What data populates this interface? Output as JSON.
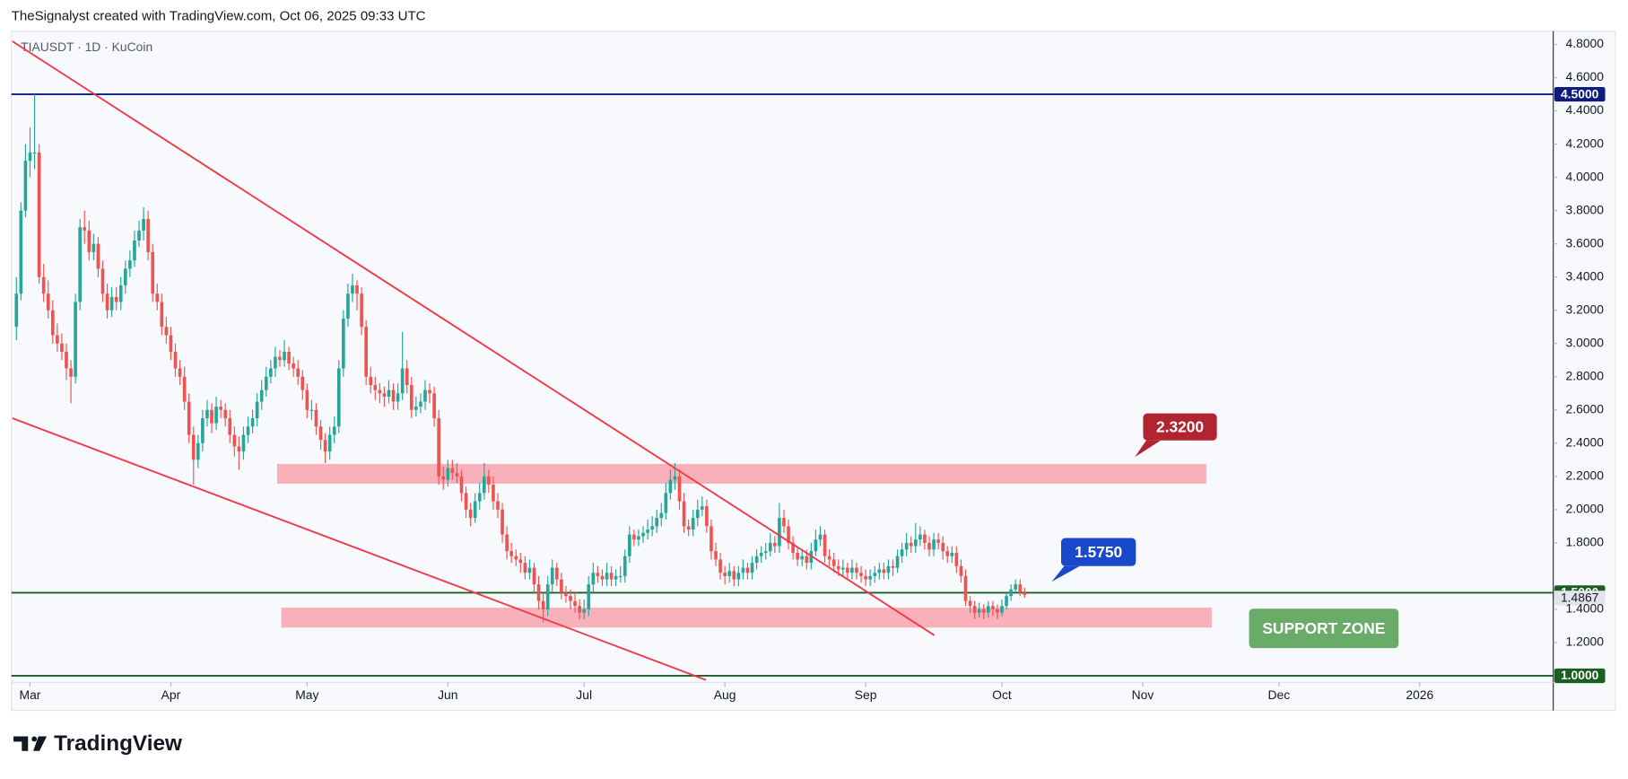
{
  "header": {
    "text": "TheSignalyst created with TradingView.com, Oct 06, 2025 09:33 UTC"
  },
  "footer": {
    "logo": "TradingView"
  },
  "chart_data": {
    "type": "candlestick",
    "symbol": "TIAUSDT · 1D · KuCoin",
    "up_color": "#26a69a",
    "down_color": "#ef5350",
    "xlim": [
      -1.1,
      338.4
    ],
    "ylim": [
      0.96,
      4.88
    ],
    "xticks": [
      {
        "value": 3,
        "label": "Mar"
      },
      {
        "value": 34,
        "label": "Apr"
      },
      {
        "value": 64,
        "label": "May"
      },
      {
        "value": 95,
        "label": "Jun"
      },
      {
        "value": 125,
        "label": "Jul"
      },
      {
        "value": 156,
        "label": "Aug"
      },
      {
        "value": 187,
        "label": "Sep"
      },
      {
        "value": 217,
        "label": "Oct"
      },
      {
        "value": 248,
        "label": "Nov"
      },
      {
        "value": 278,
        "label": "Dec"
      },
      {
        "value": 309,
        "label": "2026"
      }
    ],
    "yticks": [
      {
        "value": 4.8,
        "label": "4.8000"
      },
      {
        "value": 4.6,
        "label": "4.6000"
      },
      {
        "value": 4.4,
        "label": "4.4000"
      },
      {
        "value": 4.2,
        "label": "4.2000"
      },
      {
        "value": 4.0,
        "label": "4.0000"
      },
      {
        "value": 3.8,
        "label": "3.8000"
      },
      {
        "value": 3.6,
        "label": "3.6000"
      },
      {
        "value": 3.4,
        "label": "3.4000"
      },
      {
        "value": 3.2,
        "label": "3.2000"
      },
      {
        "value": 3.0,
        "label": "3.0000"
      },
      {
        "value": 2.8,
        "label": "2.8000"
      },
      {
        "value": 2.6,
        "label": "2.6000"
      },
      {
        "value": 2.4,
        "label": "2.4000"
      },
      {
        "value": 2.2,
        "label": "2.2000"
      },
      {
        "value": 2.0,
        "label": "2.0000"
      },
      {
        "value": 1.8,
        "label": "1.8000"
      },
      {
        "value": 1.4,
        "label": "1.4000"
      },
      {
        "value": 1.2,
        "label": "1.2000"
      }
    ],
    "grid": false,
    "levels": [
      {
        "value": 4.5,
        "label": "4.5000",
        "color": "#0d1b7e"
      },
      {
        "value": 1.5,
        "label": "1.5000",
        "color": "#1b5e20"
      },
      {
        "value": 1.0,
        "label": "1.0000",
        "color": "#1b5e20"
      }
    ],
    "last_price": {
      "value": 1.4867,
      "label": "1.4867"
    },
    "zones": [
      {
        "from": 2.156,
        "to": 2.275,
        "x": [
          57.4,
          262
        ],
        "color": "#f7a9b2"
      },
      {
        "from": 1.29,
        "to": 1.41,
        "x": [
          58.3,
          263.2
        ],
        "color": "#f7a9b2"
      }
    ],
    "trendlines": [
      {
        "x": [
          -0.9,
          202.1
        ],
        "y": [
          4.819,
          1.244
        ],
        "color": "#f23645"
      },
      {
        "x": [
          -0.9,
          151.8
        ],
        "y": [
          2.55,
          0.975
        ],
        "color": "#f23645"
      }
    ],
    "annotations": [
      {
        "text": "2.3200",
        "color": "#b2242f"
      },
      {
        "text": "1.5750",
        "color": "#1848cc"
      },
      {
        "text": "SUPPORT ZONE",
        "color": "#6aab6a"
      }
    ],
    "candles": [
      [
        3.1,
        3.4,
        3.02,
        3.3
      ],
      [
        3.3,
        3.85,
        3.26,
        3.8
      ],
      [
        3.8,
        4.2,
        3.76,
        4.1
      ],
      [
        4.1,
        4.3,
        4.0,
        4.15
      ],
      [
        4.15,
        4.5,
        4.05,
        4.15
      ],
      [
        4.15,
        4.2,
        3.36,
        3.4
      ],
      [
        3.4,
        3.48,
        3.25,
        3.3
      ],
      [
        3.3,
        3.38,
        3.15,
        3.2
      ],
      [
        3.2,
        3.26,
        3.0,
        3.05
      ],
      [
        3.05,
        3.12,
        2.95,
        3.0
      ],
      [
        3.0,
        3.06,
        2.9,
        2.95
      ],
      [
        2.95,
        3.0,
        2.78,
        2.85
      ],
      [
        2.85,
        2.9,
        2.64,
        2.8
      ],
      [
        2.8,
        3.3,
        2.76,
        3.25
      ],
      [
        3.25,
        3.75,
        3.2,
        3.7
      ],
      [
        3.7,
        3.8,
        3.6,
        3.68
      ],
      [
        3.68,
        3.74,
        3.5,
        3.55
      ],
      [
        3.55,
        3.66,
        3.5,
        3.6
      ],
      [
        3.6,
        3.64,
        3.4,
        3.45
      ],
      [
        3.45,
        3.5,
        3.25,
        3.3
      ],
      [
        3.3,
        3.36,
        3.15,
        3.2
      ],
      [
        3.2,
        3.34,
        3.16,
        3.28
      ],
      [
        3.28,
        3.34,
        3.2,
        3.25
      ],
      [
        3.25,
        3.4,
        3.2,
        3.35
      ],
      [
        3.35,
        3.5,
        3.3,
        3.45
      ],
      [
        3.45,
        3.56,
        3.4,
        3.5
      ],
      [
        3.5,
        3.68,
        3.46,
        3.62
      ],
      [
        3.62,
        3.74,
        3.58,
        3.68
      ],
      [
        3.68,
        3.82,
        3.62,
        3.75
      ],
      [
        3.75,
        3.8,
        3.5,
        3.55
      ],
      [
        3.55,
        3.6,
        3.25,
        3.3
      ],
      [
        3.3,
        3.36,
        3.2,
        3.25
      ],
      [
        3.25,
        3.3,
        3.05,
        3.1
      ],
      [
        3.1,
        3.16,
        3.0,
        3.05
      ],
      [
        3.05,
        3.1,
        2.9,
        2.95
      ],
      [
        2.95,
        3.0,
        2.8,
        2.85
      ],
      [
        2.85,
        2.9,
        2.75,
        2.8
      ],
      [
        2.8,
        2.86,
        2.6,
        2.65
      ],
      [
        2.65,
        2.7,
        2.4,
        2.45
      ],
      [
        2.45,
        2.5,
        2.15,
        2.3
      ],
      [
        2.3,
        2.45,
        2.25,
        2.4
      ],
      [
        2.4,
        2.6,
        2.35,
        2.55
      ],
      [
        2.55,
        2.66,
        2.5,
        2.6
      ],
      [
        2.6,
        2.64,
        2.46,
        2.52
      ],
      [
        2.52,
        2.68,
        2.48,
        2.62
      ],
      [
        2.62,
        2.66,
        2.55,
        2.6
      ],
      [
        2.6,
        2.64,
        2.5,
        2.55
      ],
      [
        2.55,
        2.6,
        2.4,
        2.45
      ],
      [
        2.45,
        2.5,
        2.32,
        2.38
      ],
      [
        2.38,
        2.44,
        2.24,
        2.35
      ],
      [
        2.35,
        2.5,
        2.3,
        2.45
      ],
      [
        2.45,
        2.56,
        2.4,
        2.5
      ],
      [
        2.5,
        2.6,
        2.46,
        2.55
      ],
      [
        2.55,
        2.7,
        2.5,
        2.65
      ],
      [
        2.65,
        2.78,
        2.6,
        2.72
      ],
      [
        2.72,
        2.86,
        2.68,
        2.8
      ],
      [
        2.8,
        2.9,
        2.76,
        2.85
      ],
      [
        2.85,
        2.98,
        2.8,
        2.92
      ],
      [
        2.92,
        2.96,
        2.86,
        2.9
      ],
      [
        2.9,
        3.02,
        2.86,
        2.95
      ],
      [
        2.95,
        2.98,
        2.84,
        2.88
      ],
      [
        2.88,
        2.92,
        2.8,
        2.85
      ],
      [
        2.85,
        2.9,
        2.75,
        2.8
      ],
      [
        2.8,
        2.84,
        2.66,
        2.72
      ],
      [
        2.72,
        2.76,
        2.55,
        2.6
      ],
      [
        2.6,
        2.66,
        2.54,
        2.6
      ],
      [
        2.6,
        2.64,
        2.45,
        2.5
      ],
      [
        2.5,
        2.54,
        2.36,
        2.42
      ],
      [
        2.42,
        2.46,
        2.28,
        2.35
      ],
      [
        2.35,
        2.5,
        2.3,
        2.45
      ],
      [
        2.45,
        2.56,
        2.4,
        2.5
      ],
      [
        2.5,
        2.9,
        2.46,
        2.85
      ],
      [
        2.85,
        3.2,
        2.8,
        3.15
      ],
      [
        3.15,
        3.36,
        3.1,
        3.3
      ],
      [
        3.3,
        3.42,
        3.25,
        3.35
      ],
      [
        3.35,
        3.38,
        3.2,
        3.3
      ],
      [
        3.3,
        3.34,
        3.05,
        3.1
      ],
      [
        3.1,
        3.14,
        2.75,
        2.8
      ],
      [
        2.8,
        2.86,
        2.7,
        2.75
      ],
      [
        2.75,
        2.8,
        2.66,
        2.72
      ],
      [
        2.72,
        2.76,
        2.64,
        2.7
      ],
      [
        2.7,
        2.74,
        2.62,
        2.68
      ],
      [
        2.68,
        2.78,
        2.64,
        2.72
      ],
      [
        2.72,
        2.76,
        2.6,
        2.65
      ],
      [
        2.65,
        2.76,
        2.6,
        2.7
      ],
      [
        2.7,
        3.07,
        2.66,
        2.85
      ],
      [
        2.85,
        2.9,
        2.7,
        2.75
      ],
      [
        2.75,
        2.8,
        2.55,
        2.6
      ],
      [
        2.6,
        2.68,
        2.56,
        2.62
      ],
      [
        2.62,
        2.7,
        2.58,
        2.65
      ],
      [
        2.65,
        2.78,
        2.6,
        2.72
      ],
      [
        2.72,
        2.76,
        2.64,
        2.7
      ],
      [
        2.7,
        2.74,
        2.5,
        2.55
      ],
      [
        2.55,
        2.6,
        2.15,
        2.2
      ],
      [
        2.2,
        2.26,
        2.12,
        2.18
      ],
      [
        2.18,
        2.3,
        2.14,
        2.25
      ],
      [
        2.25,
        2.3,
        2.18,
        2.22
      ],
      [
        2.22,
        2.28,
        2.16,
        2.2
      ],
      [
        2.2,
        2.24,
        2.05,
        2.1
      ],
      [
        2.1,
        2.14,
        1.95,
        2.0
      ],
      [
        2.0,
        2.04,
        1.9,
        1.95
      ],
      [
        1.95,
        2.1,
        1.92,
        2.05
      ],
      [
        2.05,
        2.16,
        2.0,
        2.1
      ],
      [
        2.1,
        2.28,
        2.06,
        2.2
      ],
      [
        2.2,
        2.24,
        2.1,
        2.15
      ],
      [
        2.15,
        2.2,
        2.0,
        2.05
      ],
      [
        2.05,
        2.1,
        1.95,
        2.0
      ],
      [
        2.0,
        2.04,
        1.8,
        1.85
      ],
      [
        1.85,
        1.9,
        1.7,
        1.75
      ],
      [
        1.75,
        1.8,
        1.68,
        1.72
      ],
      [
        1.72,
        1.76,
        1.66,
        1.7
      ],
      [
        1.7,
        1.74,
        1.62,
        1.68
      ],
      [
        1.68,
        1.72,
        1.58,
        1.62
      ],
      [
        1.62,
        1.7,
        1.58,
        1.65
      ],
      [
        1.65,
        1.68,
        1.5,
        1.55
      ],
      [
        1.55,
        1.6,
        1.4,
        1.45
      ],
      [
        1.45,
        1.5,
        1.32,
        1.4
      ],
      [
        1.4,
        1.6,
        1.36,
        1.55
      ],
      [
        1.55,
        1.7,
        1.5,
        1.65
      ],
      [
        1.65,
        1.68,
        1.54,
        1.58
      ],
      [
        1.58,
        1.62,
        1.46,
        1.5
      ],
      [
        1.5,
        1.54,
        1.44,
        1.48
      ],
      [
        1.48,
        1.52,
        1.4,
        1.45
      ],
      [
        1.45,
        1.5,
        1.38,
        1.42
      ],
      [
        1.42,
        1.46,
        1.34,
        1.38
      ],
      [
        1.38,
        1.46,
        1.34,
        1.4
      ],
      [
        1.4,
        1.6,
        1.36,
        1.55
      ],
      [
        1.55,
        1.68,
        1.5,
        1.62
      ],
      [
        1.62,
        1.66,
        1.56,
        1.6
      ],
      [
        1.6,
        1.64,
        1.54,
        1.58
      ],
      [
        1.58,
        1.68,
        1.54,
        1.62
      ],
      [
        1.62,
        1.66,
        1.54,
        1.58
      ],
      [
        1.58,
        1.64,
        1.54,
        1.6
      ],
      [
        1.6,
        1.66,
        1.56,
        1.6
      ],
      [
        1.6,
        1.76,
        1.56,
        1.72
      ],
      [
        1.72,
        1.9,
        1.68,
        1.85
      ],
      [
        1.85,
        1.88,
        1.78,
        1.82
      ],
      [
        1.82,
        1.88,
        1.78,
        1.84
      ],
      [
        1.84,
        1.9,
        1.8,
        1.86
      ],
      [
        1.86,
        1.94,
        1.82,
        1.88
      ],
      [
        1.88,
        1.96,
        1.84,
        1.9
      ],
      [
        1.9,
        2.0,
        1.86,
        1.95
      ],
      [
        1.95,
        2.04,
        1.9,
        1.98
      ],
      [
        1.98,
        2.16,
        1.94,
        2.1
      ],
      [
        2.1,
        2.24,
        2.06,
        2.18
      ],
      [
        2.18,
        2.28,
        2.12,
        2.2
      ],
      [
        2.2,
        2.24,
        2.0,
        2.05
      ],
      [
        2.05,
        2.1,
        1.86,
        1.9
      ],
      [
        1.9,
        1.94,
        1.84,
        1.88
      ],
      [
        1.88,
        2.0,
        1.84,
        1.95
      ],
      [
        1.95,
        2.06,
        1.9,
        2.0
      ],
      [
        2.0,
        2.08,
        1.96,
        2.02
      ],
      [
        2.02,
        2.06,
        1.86,
        1.9
      ],
      [
        1.9,
        1.94,
        1.7,
        1.75
      ],
      [
        1.75,
        1.8,
        1.66,
        1.7
      ],
      [
        1.7,
        1.74,
        1.58,
        1.62
      ],
      [
        1.62,
        1.66,
        1.55,
        1.6
      ],
      [
        1.6,
        1.68,
        1.56,
        1.63
      ],
      [
        1.63,
        1.66,
        1.54,
        1.58
      ],
      [
        1.58,
        1.66,
        1.54,
        1.62
      ],
      [
        1.62,
        1.7,
        1.58,
        1.65
      ],
      [
        1.65,
        1.68,
        1.58,
        1.62
      ],
      [
        1.62,
        1.72,
        1.58,
        1.68
      ],
      [
        1.68,
        1.76,
        1.64,
        1.72
      ],
      [
        1.72,
        1.78,
        1.68,
        1.74
      ],
      [
        1.74,
        1.8,
        1.7,
        1.75
      ],
      [
        1.75,
        1.86,
        1.72,
        1.8
      ],
      [
        1.8,
        1.84,
        1.74,
        1.78
      ],
      [
        1.78,
        2.04,
        1.74,
        1.95
      ],
      [
        1.95,
        2.0,
        1.86,
        1.9
      ],
      [
        1.9,
        1.94,
        1.76,
        1.8
      ],
      [
        1.8,
        1.84,
        1.7,
        1.74
      ],
      [
        1.74,
        1.78,
        1.66,
        1.7
      ],
      [
        1.7,
        1.76,
        1.66,
        1.72
      ],
      [
        1.72,
        1.76,
        1.64,
        1.68
      ],
      [
        1.68,
        1.8,
        1.64,
        1.75
      ],
      [
        1.75,
        1.88,
        1.72,
        1.82
      ],
      [
        1.82,
        1.9,
        1.78,
        1.85
      ],
      [
        1.85,
        1.88,
        1.68,
        1.72
      ],
      [
        1.72,
        1.76,
        1.66,
        1.7
      ],
      [
        1.7,
        1.74,
        1.62,
        1.66
      ],
      [
        1.66,
        1.7,
        1.6,
        1.64
      ],
      [
        1.64,
        1.7,
        1.6,
        1.65
      ],
      [
        1.65,
        1.68,
        1.58,
        1.62
      ],
      [
        1.62,
        1.7,
        1.58,
        1.65
      ],
      [
        1.65,
        1.68,
        1.58,
        1.62
      ],
      [
        1.62,
        1.66,
        1.56,
        1.6
      ],
      [
        1.6,
        1.64,
        1.54,
        1.58
      ],
      [
        1.58,
        1.64,
        1.54,
        1.6
      ],
      [
        1.6,
        1.66,
        1.56,
        1.62
      ],
      [
        1.62,
        1.68,
        1.58,
        1.64
      ],
      [
        1.64,
        1.68,
        1.58,
        1.62
      ],
      [
        1.62,
        1.7,
        1.58,
        1.66
      ],
      [
        1.66,
        1.7,
        1.6,
        1.65
      ],
      [
        1.65,
        1.76,
        1.62,
        1.72
      ],
      [
        1.72,
        1.8,
        1.68,
        1.76
      ],
      [
        1.76,
        1.86,
        1.72,
        1.8
      ],
      [
        1.8,
        1.84,
        1.74,
        1.78
      ],
      [
        1.78,
        1.92,
        1.74,
        1.82
      ],
      [
        1.82,
        1.9,
        1.78,
        1.85
      ],
      [
        1.85,
        1.88,
        1.76,
        1.8
      ],
      [
        1.8,
        1.84,
        1.72,
        1.76
      ],
      [
        1.76,
        1.86,
        1.72,
        1.82
      ],
      [
        1.82,
        1.86,
        1.76,
        1.8
      ],
      [
        1.8,
        1.84,
        1.7,
        1.75
      ],
      [
        1.75,
        1.78,
        1.68,
        1.72
      ],
      [
        1.72,
        1.78,
        1.68,
        1.74
      ],
      [
        1.74,
        1.78,
        1.62,
        1.66
      ],
      [
        1.66,
        1.7,
        1.56,
        1.6
      ],
      [
        1.6,
        1.64,
        1.42,
        1.45
      ],
      [
        1.45,
        1.48,
        1.38,
        1.42
      ],
      [
        1.42,
        1.45,
        1.34,
        1.38
      ],
      [
        1.38,
        1.44,
        1.35,
        1.4
      ],
      [
        1.4,
        1.43,
        1.34,
        1.38
      ],
      [
        1.38,
        1.45,
        1.35,
        1.42
      ],
      [
        1.42,
        1.45,
        1.36,
        1.4
      ],
      [
        1.4,
        1.43,
        1.34,
        1.38
      ],
      [
        1.38,
        1.46,
        1.36,
        1.42
      ],
      [
        1.42,
        1.5,
        1.4,
        1.48
      ],
      [
        1.48,
        1.55,
        1.45,
        1.52
      ],
      [
        1.52,
        1.58,
        1.5,
        1.55
      ],
      [
        1.55,
        1.58,
        1.48,
        1.5
      ],
      [
        1.5,
        1.53,
        1.47,
        1.4867
      ]
    ]
  }
}
